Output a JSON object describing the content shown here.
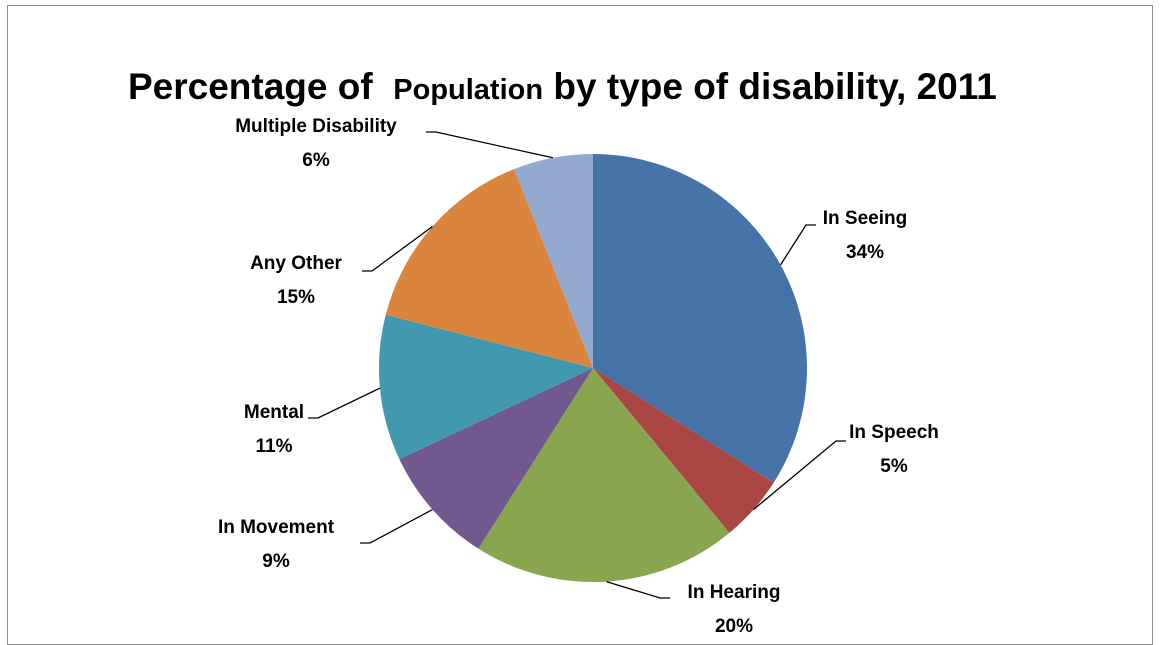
{
  "chart_data": {
    "type": "pie",
    "title_parts": [
      "Percentage of",
      "Population",
      "by type of disability, 2011"
    ],
    "slices": [
      {
        "name": "In Seeing",
        "value": 34,
        "label": "34%",
        "color": "#4572A7"
      },
      {
        "name": "In Speech",
        "value": 5,
        "label": "5%",
        "color": "#AA4643"
      },
      {
        "name": "In Hearing",
        "value": 20,
        "label": "20%",
        "color": "#89A54E"
      },
      {
        "name": "In Movement",
        "value": 9,
        "label": "9%",
        "color": "#71588F"
      },
      {
        "name": "Mental",
        "value": 11,
        "label": "11%",
        "color": "#4198AF"
      },
      {
        "name": "Any Other",
        "value": 15,
        "label": "15%",
        "color": "#DB843D"
      },
      {
        "name": "Multiple Disability",
        "value": 6,
        "label": "6%",
        "color": "#93A9CF"
      }
    ],
    "legend": "none",
    "data_labels": "outside-with-leader-lines"
  }
}
